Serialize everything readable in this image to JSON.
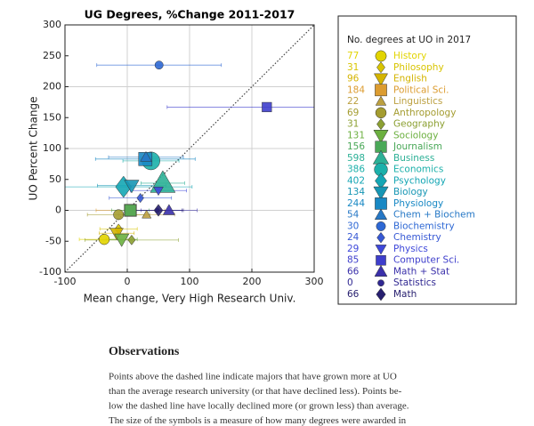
{
  "chart_data": {
    "type": "scatter",
    "title": "UG Degrees, %Change 2011-2017",
    "xlabel": "Mean change, Very High Research Univ.",
    "ylabel": "UO Percent Change",
    "legend_title": "No. degrees at UO in 2017",
    "xlim": [
      -100,
      300
    ],
    "ylim": [
      -100,
      300
    ],
    "xticks": [
      -100,
      0,
      100,
      200,
      300
    ],
    "yticks": [
      -100,
      -50,
      0,
      50,
      100,
      150,
      200,
      250,
      300
    ],
    "grid": true,
    "series": [
      {
        "name": "History",
        "color": "#e2d400",
        "marker": "circle",
        "x": -37,
        "y": -47,
        "xerr": 40,
        "size": 77
      },
      {
        "name": "Philosophy",
        "color": "#d8c400",
        "marker": "diamond",
        "x": -14,
        "y": -30,
        "xerr": 30,
        "size": 31
      },
      {
        "name": "English",
        "color": "#d4b400",
        "marker": "triangle-down",
        "x": -17,
        "y": -37,
        "xerr": 28,
        "size": 96
      },
      {
        "name": "Political Sci.",
        "color": "#dc9c30",
        "marker": "square",
        "x": 5,
        "y": 0,
        "xerr": 55,
        "size": 184
      },
      {
        "name": "Linguistics",
        "color": "#bca040",
        "marker": "triangle",
        "x": 31,
        "y": -7,
        "xerr": 45,
        "size": 22
      },
      {
        "name": "Anthropology",
        "color": "#a49c30",
        "marker": "circle",
        "x": -14,
        "y": -7,
        "xerr": 50,
        "size": 69
      },
      {
        "name": "Geography",
        "color": "#8ca032",
        "marker": "diamond",
        "x": 7,
        "y": -48,
        "xerr": 75,
        "size": 31
      },
      {
        "name": "Sociology",
        "color": "#6cb040",
        "marker": "triangle-down",
        "x": -9,
        "y": -47,
        "xerr": 25,
        "size": 131
      },
      {
        "name": "Journalism",
        "color": "#4aa858",
        "marker": "square",
        "x": 5,
        "y": 0,
        "xerr": 30,
        "size": 156
      },
      {
        "name": "Business",
        "color": "#2cb096",
        "marker": "triangle",
        "x": 57,
        "y": 44,
        "xerr": 35,
        "size": 598
      },
      {
        "name": "Economics",
        "color": "#1cb0aa",
        "marker": "circle",
        "x": 38,
        "y": 80,
        "xerr": 45,
        "size": 386
      },
      {
        "name": "Psychology",
        "color": "#14a6b4",
        "marker": "diamond",
        "x": -6,
        "y": 38,
        "xerr": 110,
        "size": 402
      },
      {
        "name": "Biology",
        "color": "#1696b4",
        "marker": "triangle-down",
        "x": 7,
        "y": 40,
        "xerr": 55,
        "size": 134
      },
      {
        "name": "Physiology",
        "color": "#1888c4",
        "marker": "square",
        "x": 29,
        "y": 83,
        "xerr": 80,
        "size": 244
      },
      {
        "name": "Chem + Biochem",
        "color": "#2678c6",
        "marker": "triangle",
        "x": 30,
        "y": 86,
        "xerr": 60,
        "size": 54
      },
      {
        "name": "Biochemistry",
        "color": "#2e68d4",
        "marker": "circle",
        "x": 51,
        "y": 235,
        "xerr": 100,
        "size": 30
      },
      {
        "name": "Chemistry",
        "color": "#3658d4",
        "marker": "diamond",
        "x": 21,
        "y": 20,
        "xerr": 50,
        "size": 24
      },
      {
        "name": "Physics",
        "color": "#3e48da",
        "marker": "triangle-down",
        "x": 50,
        "y": 32,
        "xerr": 45,
        "size": 29
      },
      {
        "name": "Computer Sci.",
        "color": "#3e3ecc",
        "marker": "square",
        "x": 224,
        "y": 167,
        "xerr": 160,
        "size": 85
      },
      {
        "name": "Math + Stat",
        "color": "#3a30aa",
        "marker": "triangle",
        "x": 67,
        "y": 0,
        "xerr": 45,
        "size": 66
      },
      {
        "name": "Statistics",
        "color": "#302892",
        "marker": "circle",
        "x": 48,
        "y": 0,
        "xerr": 40,
        "size": 0
      },
      {
        "name": "Math",
        "color": "#282070",
        "marker": "diamond",
        "x": 50,
        "y": 0,
        "xerr": 40,
        "size": 66
      }
    ]
  },
  "text": {
    "heading": "Observations",
    "lines": [
      "Points above the dashed line indicate majors that have grown more at UO",
      "than the average research university (or that have declined less). Points be-",
      "low the dashed line have locally declined more (or grown less) than average.",
      "The size of the symbols is a measure of how many degrees were awarded in"
    ]
  }
}
